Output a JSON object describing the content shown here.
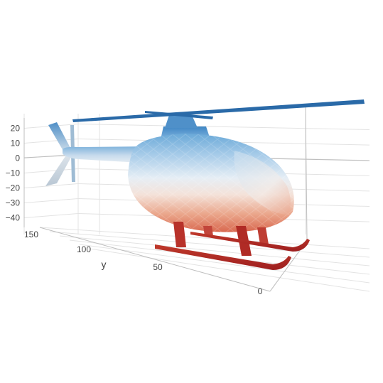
{
  "chart_data": {
    "type": "3d-mesh",
    "title": "",
    "colorscale": [
      "#b2182b",
      "#ef8a62",
      "#fddbc7",
      "#f7f7f7",
      "#d1e5f0",
      "#67a9cf",
      "#2166ac"
    ],
    "axes": {
      "z": {
        "label": "",
        "ticks": [
          {
            "value": 20,
            "label": "20"
          },
          {
            "value": 10,
            "label": "10"
          },
          {
            "value": 0,
            "label": "0"
          },
          {
            "value": -10,
            "label": "−10"
          },
          {
            "value": -20,
            "label": "−20"
          },
          {
            "value": -30,
            "label": "−30"
          },
          {
            "value": -40,
            "label": "−40"
          }
        ]
      },
      "y": {
        "label": "y",
        "ticks": [
          {
            "value": 150,
            "label": "150"
          },
          {
            "value": 100,
            "label": "100"
          },
          {
            "value": 50,
            "label": "50"
          }
        ]
      },
      "x": {
        "label": "",
        "ticks": [
          {
            "value": 0,
            "label": "0"
          }
        ]
      }
    },
    "grid": true,
    "legend": "none",
    "mesh_object": "helicopter"
  }
}
